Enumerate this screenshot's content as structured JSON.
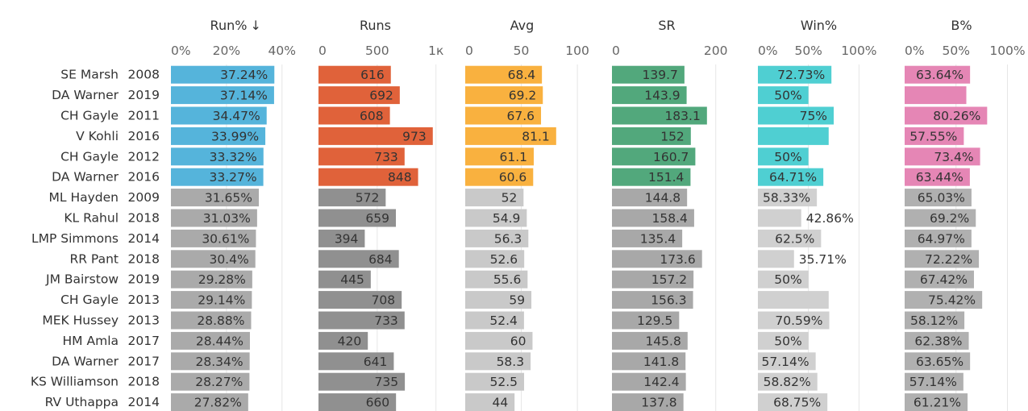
{
  "chart_data": {
    "type": "bar",
    "orientation": "horizontal",
    "sort_indicator": "↓",
    "rows": [
      {
        "player": "SE Marsh",
        "year": "2008",
        "highlight": true
      },
      {
        "player": "DA Warner",
        "year": "2019",
        "highlight": true
      },
      {
        "player": "CH Gayle",
        "year": "2011",
        "highlight": true
      },
      {
        "player": "V Kohli",
        "year": "2016",
        "highlight": true
      },
      {
        "player": "CH Gayle",
        "year": "2012",
        "highlight": true
      },
      {
        "player": "DA Warner",
        "year": "2016",
        "highlight": true
      },
      {
        "player": "ML Hayden",
        "year": "2009",
        "highlight": false
      },
      {
        "player": "KL Rahul",
        "year": "2018",
        "highlight": false
      },
      {
        "player": "LMP Simmons",
        "year": "2014",
        "highlight": false
      },
      {
        "player": "RR Pant",
        "year": "2018",
        "highlight": false
      },
      {
        "player": "JM Bairstow",
        "year": "2019",
        "highlight": false
      },
      {
        "player": "CH Gayle",
        "year": "2013",
        "highlight": false
      },
      {
        "player": "MEK Hussey",
        "year": "2013",
        "highlight": false
      },
      {
        "player": "HM Amla",
        "year": "2017",
        "highlight": false
      },
      {
        "player": "DA Warner",
        "year": "2017",
        "highlight": false
      },
      {
        "player": "KS Williamson",
        "year": "2018",
        "highlight": false
      },
      {
        "player": "RV Uthappa",
        "year": "2014",
        "highlight": false
      }
    ],
    "columns": [
      {
        "key": "run_pct",
        "title": "Run%",
        "max": 45,
        "ticks": [
          {
            "v": 0,
            "label": "0%"
          },
          {
            "v": 20,
            "label": "20%"
          },
          {
            "v": 40,
            "label": "40%"
          }
        ],
        "highlight_color": "#55b4db",
        "base_color": "#aaaaaa",
        "values": [
          37.24,
          37.14,
          34.47,
          33.99,
          33.32,
          33.27,
          31.65,
          31.03,
          30.61,
          30.4,
          29.28,
          29.14,
          28.88,
          28.44,
          28.34,
          28.27,
          27.82
        ],
        "labels": [
          "37.24%",
          "37.14%",
          "34.47%",
          "33.99%",
          "33.32%",
          "33.27%",
          "31.65%",
          "31.03%",
          "30.61%",
          "30.4%",
          "29.28%",
          "29.14%",
          "28.88%",
          "28.44%",
          "28.34%",
          "28.27%",
          "27.82%"
        ]
      },
      {
        "key": "runs",
        "title": "Runs",
        "max": 1050,
        "ticks": [
          {
            "v": 0,
            "label": "0"
          },
          {
            "v": 500,
            "label": "500"
          },
          {
            "v": 1000,
            "label": "1к"
          }
        ],
        "highlight_color": "#e0623a",
        "base_color": "#909090",
        "values": [
          616,
          692,
          608,
          973,
          733,
          848,
          572,
          659,
          394,
          684,
          445,
          708,
          733,
          420,
          641,
          735,
          660
        ],
        "labels": [
          "616",
          "692",
          "608",
          "973",
          "733",
          "848",
          "572",
          "659",
          "394",
          "684",
          "445",
          "708",
          "733",
          "420",
          "641",
          "735",
          "660"
        ]
      },
      {
        "key": "avg",
        "title": "Avg",
        "max": 110,
        "ticks": [
          {
            "v": 0,
            "label": "0"
          },
          {
            "v": 50,
            "label": "50"
          },
          {
            "v": 100,
            "label": "100"
          }
        ],
        "highlight_color": "#f9b13f",
        "base_color": "#c9c9c9",
        "values": [
          68.4,
          69.2,
          67.6,
          81.1,
          61.1,
          60.6,
          52,
          54.9,
          56.3,
          52.6,
          55.6,
          59,
          52.4,
          60,
          58.3,
          52.5,
          44
        ],
        "labels": [
          "68.4",
          "69.2",
          "67.6",
          "81.1",
          "61.1",
          "60.6",
          "52",
          "54.9",
          "56.3",
          "52.6",
          "55.6",
          "59",
          "52.4",
          "60",
          "58.3",
          "52.5",
          "44"
        ]
      },
      {
        "key": "sr",
        "title": "SR",
        "max": 230,
        "ticks": [
          {
            "v": 0,
            "label": "0"
          },
          {
            "v": 200,
            "label": "200"
          }
        ],
        "highlight_color": "#52a87c",
        "base_color": "#a8a8a8",
        "values": [
          139.7,
          143.9,
          183.1,
          152,
          160.7,
          151.4,
          144.8,
          158.4,
          135.4,
          173.6,
          157.2,
          156.3,
          129.5,
          145.8,
          141.8,
          142.4,
          137.8
        ],
        "labels": [
          "139.7",
          "143.9",
          "183.1",
          "152",
          "160.7",
          "151.4",
          "144.8",
          "158.4",
          "135.4",
          "173.6",
          "157.2",
          "156.3",
          "129.5",
          "145.8",
          "141.8",
          "142.4",
          "137.8"
        ]
      },
      {
        "key": "win_pct",
        "title": "Win%",
        "max": 130,
        "ticks": [
          {
            "v": 0,
            "label": "0%"
          },
          {
            "v": 50,
            "label": "50%"
          },
          {
            "v": 100,
            "label": "100%"
          }
        ],
        "highlight_color": "#4fcfd2",
        "base_color": "#d0d0d0",
        "values": [
          72.73,
          50,
          75,
          70,
          50,
          64.71,
          58.33,
          42.86,
          62.5,
          35.71,
          50,
          70,
          70.59,
          50,
          57.14,
          58.82,
          68.75
        ],
        "labels": [
          "72.73%",
          "50%",
          "75%",
          "",
          "50%",
          "64.71%",
          "58.33%",
          "42.86%",
          "62.5%",
          "35.71%",
          "50%",
          "",
          "70.59%",
          "50%",
          "57.14%",
          "58.82%",
          "68.75%"
        ]
      },
      {
        "key": "b_pct",
        "title": "B%",
        "max": 120,
        "ticks": [
          {
            "v": 0,
            "label": "0%"
          },
          {
            "v": 50,
            "label": "50%"
          },
          {
            "v": 100,
            "label": "100%"
          }
        ],
        "highlight_color": "#e586b5",
        "base_color": "#b0b0b0",
        "values": [
          63.64,
          60,
          80.26,
          57.55,
          73.4,
          63.44,
          65.03,
          69.2,
          64.97,
          72.22,
          67.42,
          75.42,
          58.12,
          62.38,
          63.65,
          57.14,
          61.21
        ],
        "labels": [
          "63.64%",
          "",
          "80.26%",
          "57.55%",
          "73.4%",
          "63.44%",
          "65.03%",
          "69.2%",
          "64.97%",
          "72.22%",
          "67.42%",
          "75.42%",
          "58.12%",
          "62.38%",
          "63.65%",
          "57.14%",
          "61.21%"
        ]
      }
    ]
  }
}
